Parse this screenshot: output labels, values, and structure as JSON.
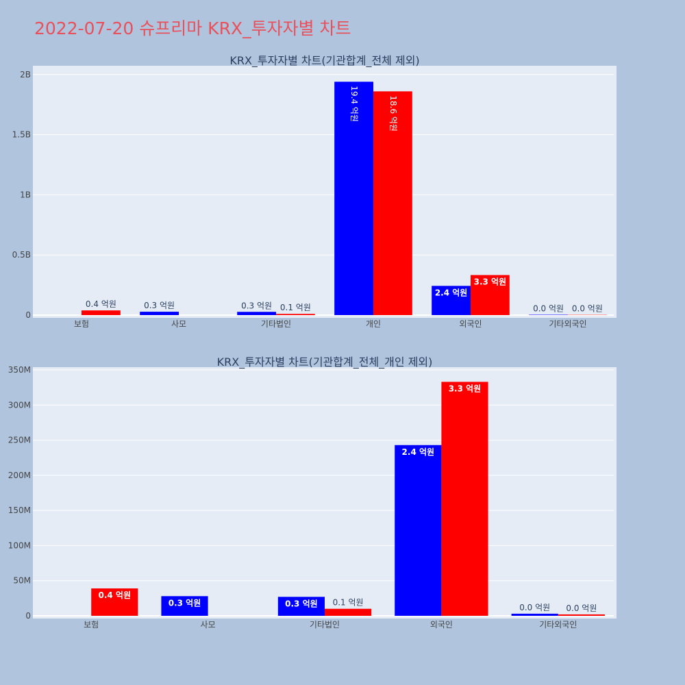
{
  "page": {
    "title": "2022-07-20 슈프리마 KRX_투자자별 차트"
  },
  "colors": {
    "page_bg": "#b0c4de",
    "plot_bg": "#e5ecf6",
    "series_a": "#0000ff",
    "series_b": "#ff0000"
  },
  "chart_data": [
    {
      "type": "bar",
      "title": "KRX_투자자별 차트(기관합계_전체 제외)",
      "categories": [
        "보험",
        "사모",
        "기타법인",
        "개인",
        "외국인",
        "기타외국인"
      ],
      "series": [
        {
          "color": "#0000ff",
          "values": [
            0,
            28000000,
            27000000,
            1940000000,
            243000000,
            3000000
          ],
          "labels": [
            "",
            "0.3 억원",
            "0.3 억원",
            "19.4 억원",
            "2.4 억원",
            "0.0 억원"
          ]
        },
        {
          "color": "#ff0000",
          "values": [
            39000000,
            0,
            10000000,
            1860000000,
            333000000,
            2000000
          ],
          "labels": [
            "0.4 억원",
            "",
            "0.1 억원",
            "18.6 억원",
            "3.3 억원",
            "0.0 억원"
          ]
        }
      ],
      "ylim": [
        0,
        2050000000
      ],
      "yticks": [
        0,
        500000000,
        1000000000,
        1500000000,
        2000000000
      ],
      "ytick_labels": [
        "0",
        "0.5B",
        "1B",
        "1.5B",
        "2B"
      ],
      "grid": true,
      "legend": "none"
    },
    {
      "type": "bar",
      "title": "KRX_투자자별 차트(기관합계_전체_개인 제외)",
      "categories": [
        "보험",
        "사모",
        "기타법인",
        "외국인",
        "기타외국인"
      ],
      "series": [
        {
          "color": "#0000ff",
          "values": [
            0,
            28000000,
            27000000,
            243000000,
            3000000
          ],
          "labels": [
            "",
            "0.3 억원",
            "0.3 억원",
            "2.4 억원",
            "0.0 억원"
          ]
        },
        {
          "color": "#ff0000",
          "values": [
            39000000,
            0,
            10000000,
            333000000,
            2000000
          ],
          "labels": [
            "0.4 억원",
            "",
            "0.1 억원",
            "3.3 억원",
            "0.0 억원"
          ]
        }
      ],
      "ylim": [
        0,
        350000000
      ],
      "yticks": [
        0,
        50000000,
        100000000,
        150000000,
        200000000,
        250000000,
        300000000,
        350000000
      ],
      "ytick_labels": [
        "0",
        "50M",
        "100M",
        "150M",
        "200M",
        "250M",
        "300M",
        "350M"
      ],
      "grid": true,
      "legend": "none"
    }
  ]
}
